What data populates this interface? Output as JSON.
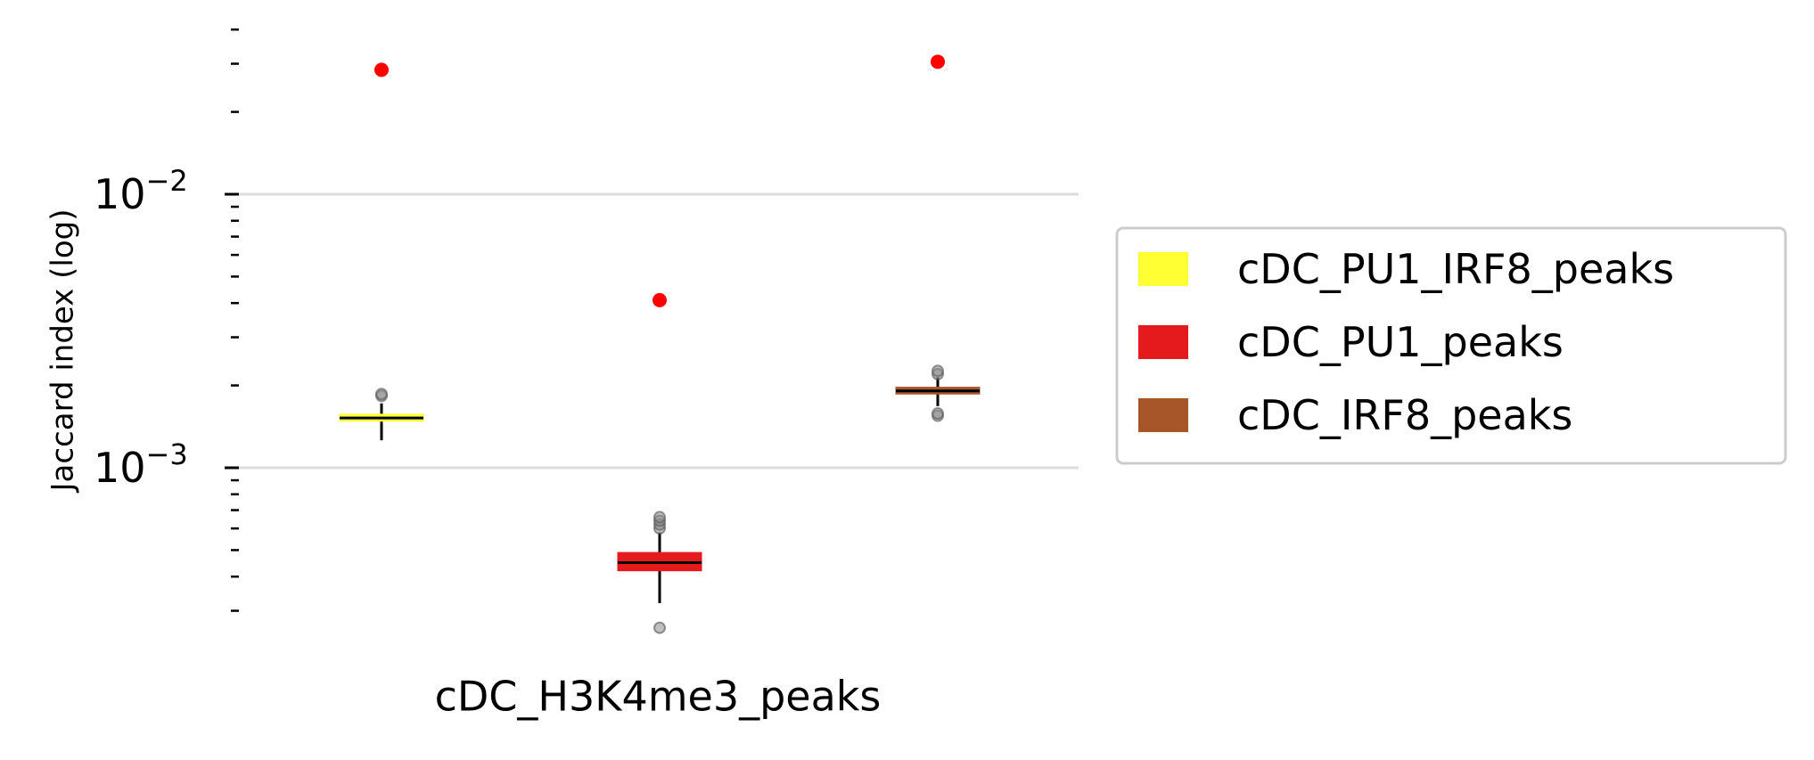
{
  "chart_data": {
    "type": "box",
    "title": "",
    "xlabel": "",
    "ylabel": "Jaccard index (log)",
    "yscale": "log",
    "ylim": [
      0.00022,
      0.04
    ],
    "y_major_ticks": [
      {
        "value": 0.001,
        "base": "10",
        "exp": "−3"
      },
      {
        "value": 0.01,
        "base": "10",
        "exp": "−2"
      }
    ],
    "grid": true,
    "legend_position": "right",
    "categories": [
      "cDC_H3K4me3_peaks"
    ],
    "series": [
      {
        "name": "cDC_PU1_IRF8_peaks",
        "color": "#ffff33",
        "observed": 0.0285,
        "box": {
          "whisker_low": 0.00126,
          "q1": 0.00148,
          "median": 0.00152,
          "q3": 0.00157,
          "whisker_high": 0.00172
        },
        "outliers": [
          0.00183,
          0.00186
        ]
      },
      {
        "name": "cDC_PU1_peaks",
        "color": "#e41a1c",
        "observed": 0.0041,
        "box": {
          "whisker_low": 0.00032,
          "q1": 0.00042,
          "median": 0.00045,
          "q3": 0.00049,
          "whisker_high": 0.00058
        },
        "outliers": [
          0.0006,
          0.00062,
          0.00064,
          0.00066,
          0.00026
        ]
      },
      {
        "name": "cDC_IRF8_peaks",
        "color": "#a65628",
        "observed": 0.0305,
        "box": {
          "whisker_low": 0.00168,
          "q1": 0.00186,
          "median": 0.00191,
          "q3": 0.00197,
          "whisker_high": 0.00214
        },
        "outliers": [
          0.0022,
          0.00226,
          0.00155,
          0.00158
        ]
      }
    ],
    "colors": {
      "observed_point": "#ff0000",
      "outlier": "#8c8c8c",
      "grid": "#dddddd",
      "legend_border": "#cccccc"
    }
  }
}
